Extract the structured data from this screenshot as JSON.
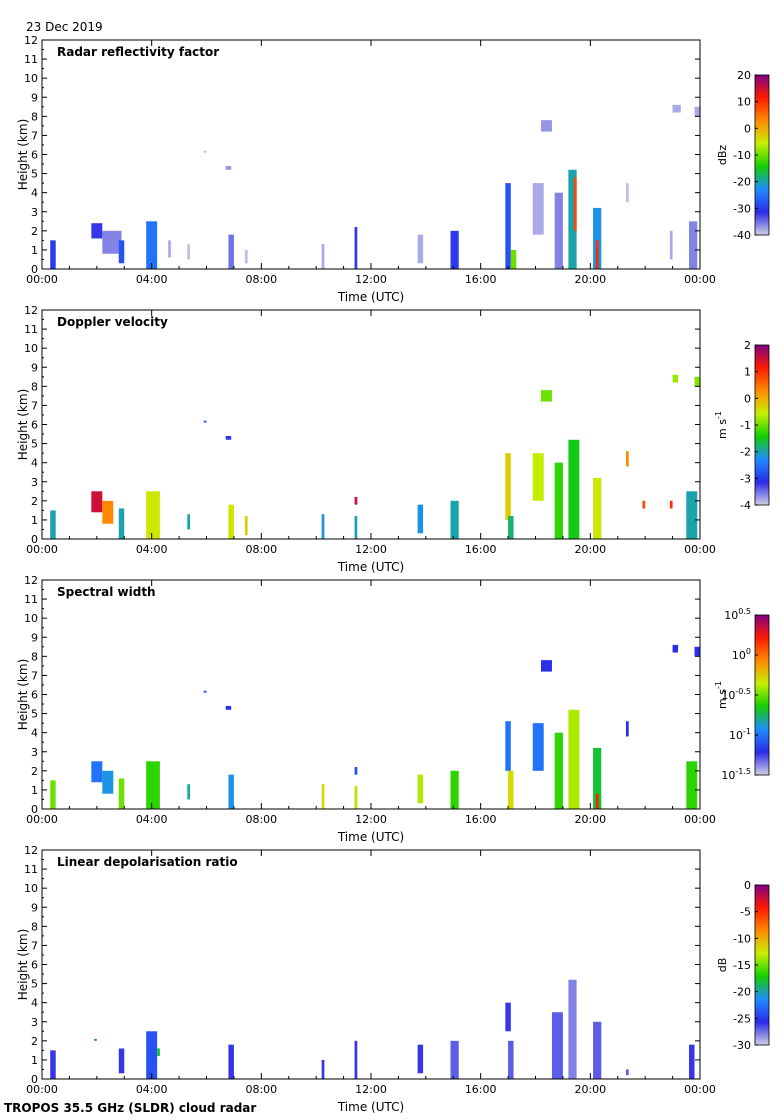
{
  "header": {
    "date": "23 Dec 2019"
  },
  "footer": {
    "caption": "TROPOS 35.5 GHz (SLDR) cloud radar"
  },
  "chart_data": [
    {
      "type": "heatmap",
      "title": "Radar reflectivity factor",
      "xlabel": "Time (UTC)",
      "ylabel": "Height (km)",
      "xticks": [
        "00:00",
        "04:00",
        "08:00",
        "12:00",
        "16:00",
        "20:00",
        "00:00"
      ],
      "xlim_hours": [
        0,
        24
      ],
      "ylim": [
        0,
        12
      ],
      "yticks": [
        0,
        1,
        2,
        3,
        4,
        5,
        6,
        7,
        8,
        9,
        10,
        11,
        12
      ],
      "colorbar": {
        "label": "dBz",
        "min": -40,
        "max": 20,
        "ticks": [
          {
            "v": 20,
            "t": "20"
          },
          {
            "v": 10,
            "t": "10"
          },
          {
            "v": 0,
            "t": "0"
          },
          {
            "v": -10,
            "t": "-10"
          },
          {
            "v": -20,
            "t": "-20"
          },
          {
            "v": -30,
            "t": "-30"
          },
          {
            "v": -40,
            "t": "-40"
          }
        ],
        "colors": [
          "#d0d0e6",
          "#2b2be8",
          "#1e8cff",
          "#12d000",
          "#c8ef00",
          "#ff8a00",
          "#ff1a00",
          "#820082"
        ]
      },
      "echoes": [
        {
          "t0": 0.3,
          "t1": 0.5,
          "h0": 0.0,
          "h1": 1.5,
          "v": -30
        },
        {
          "t0": 1.8,
          "t1": 2.2,
          "h0": 1.6,
          "h1": 2.4,
          "v": -32
        },
        {
          "t0": 2.2,
          "t1": 2.9,
          "h0": 0.8,
          "h1": 2.0,
          "v": -36
        },
        {
          "t0": 2.8,
          "t1": 3.0,
          "h0": 0.3,
          "h1": 1.5,
          "v": -28
        },
        {
          "t0": 3.8,
          "t1": 4.2,
          "h0": 0.0,
          "h1": 2.5,
          "v": -25
        },
        {
          "t0": 4.6,
          "t1": 4.7,
          "h0": 0.6,
          "h1": 1.5,
          "v": -38
        },
        {
          "t0": 5.3,
          "t1": 5.4,
          "h0": 0.5,
          "h1": 1.3,
          "v": -39
        },
        {
          "t0": 5.9,
          "t1": 6.0,
          "h0": 6.1,
          "h1": 6.2,
          "v": -39
        },
        {
          "t0": 6.7,
          "t1": 6.9,
          "h0": 5.2,
          "h1": 5.4,
          "v": -37
        },
        {
          "t0": 6.8,
          "t1": 7.0,
          "h0": 0.0,
          "h1": 1.8,
          "v": -35
        },
        {
          "t0": 7.4,
          "t1": 7.5,
          "h0": 0.3,
          "h1": 1.0,
          "v": -39
        },
        {
          "t0": 10.2,
          "t1": 10.3,
          "h0": 0.0,
          "h1": 1.3,
          "v": -38
        },
        {
          "t0": 11.4,
          "t1": 11.5,
          "h0": 0.0,
          "h1": 2.2,
          "v": -32
        },
        {
          "t0": 13.7,
          "t1": 13.9,
          "h0": 0.3,
          "h1": 1.8,
          "v": -38
        },
        {
          "t0": 14.9,
          "t1": 15.2,
          "h0": 0.0,
          "h1": 2.0,
          "v": -30
        },
        {
          "t0": 16.9,
          "t1": 17.1,
          "h0": 0.0,
          "h1": 4.5,
          "v": -28
        },
        {
          "t0": 17.1,
          "t1": 17.3,
          "h0": 0.0,
          "h1": 1.0,
          "v": -10
        },
        {
          "t0": 17.9,
          "t1": 18.3,
          "h0": 1.8,
          "h1": 4.5,
          "v": -38
        },
        {
          "t0": 18.2,
          "t1": 18.6,
          "h0": 7.2,
          "h1": 7.8,
          "v": -37
        },
        {
          "t0": 18.7,
          "t1": 19.0,
          "h0": 0.0,
          "h1": 4.0,
          "v": -36
        },
        {
          "t0": 19.2,
          "t1": 19.5,
          "h0": 0.0,
          "h1": 5.2,
          "v": -20
        },
        {
          "t0": 19.4,
          "t1": 19.5,
          "h0": 2.0,
          "h1": 4.8,
          "v": 8
        },
        {
          "t0": 20.1,
          "t1": 20.4,
          "h0": 0.0,
          "h1": 3.2,
          "v": -22
        },
        {
          "t0": 20.2,
          "t1": 20.3,
          "h0": 0.0,
          "h1": 1.5,
          "v": 10
        },
        {
          "t0": 21.3,
          "t1": 21.4,
          "h0": 3.5,
          "h1": 4.5,
          "v": -39
        },
        {
          "t0": 22.9,
          "t1": 23.0,
          "h0": 0.5,
          "h1": 2.0,
          "v": -38
        },
        {
          "t0": 23.0,
          "t1": 23.3,
          "h0": 8.2,
          "h1": 8.6,
          "v": -38
        },
        {
          "t0": 23.6,
          "t1": 23.9,
          "h0": 0.0,
          "h1": 2.5,
          "v": -36
        },
        {
          "t0": 23.8,
          "t1": 24.0,
          "h0": 8.0,
          "h1": 8.5,
          "v": -38
        }
      ]
    },
    {
      "type": "heatmap",
      "title": "Doppler velocity",
      "xlabel": "Time (UTC)",
      "ylabel": "Height (km)",
      "xticks": [
        "00:00",
        "04:00",
        "08:00",
        "12:00",
        "16:00",
        "20:00",
        "00:00"
      ],
      "xlim_hours": [
        0,
        24
      ],
      "ylim": [
        0,
        12
      ],
      "yticks": [
        0,
        1,
        2,
        3,
        4,
        5,
        6,
        7,
        8,
        9,
        10,
        11,
        12
      ],
      "colorbar": {
        "label": "m s-1",
        "min": -4,
        "max": 2,
        "ticks": [
          {
            "v": 2,
            "t": "2"
          },
          {
            "v": 1,
            "t": "1"
          },
          {
            "v": 0,
            "t": "0"
          },
          {
            "v": -1,
            "t": "-1"
          },
          {
            "v": -2,
            "t": "-2"
          },
          {
            "v": -3,
            "t": "-3"
          },
          {
            "v": -4,
            "t": "-4"
          }
        ],
        "colors": [
          "#d0d0e6",
          "#2b2be8",
          "#1e8cff",
          "#12d000",
          "#c8ef00",
          "#ff8a00",
          "#ff1a00",
          "#820082"
        ]
      },
      "echoes": [
        {
          "t0": 0.3,
          "t1": 0.5,
          "h0": 0.0,
          "h1": 1.5,
          "v": -2.0
        },
        {
          "t0": 1.8,
          "t1": 2.2,
          "h0": 1.4,
          "h1": 2.5,
          "v": 1.5
        },
        {
          "t0": 2.2,
          "t1": 2.6,
          "h0": 0.8,
          "h1": 2.0,
          "v": 0.3
        },
        {
          "t0": 2.8,
          "t1": 3.0,
          "h0": 0.0,
          "h1": 1.6,
          "v": -2.0
        },
        {
          "t0": 3.8,
          "t1": 4.3,
          "h0": 0.0,
          "h1": 2.5,
          "v": -0.5
        },
        {
          "t0": 5.3,
          "t1": 5.4,
          "h0": 0.5,
          "h1": 1.3,
          "v": -2.0
        },
        {
          "t0": 5.9,
          "t1": 6.0,
          "h0": 6.1,
          "h1": 6.2,
          "v": -2.8
        },
        {
          "t0": 6.7,
          "t1": 6.9,
          "h0": 5.2,
          "h1": 5.4,
          "v": -3.0
        },
        {
          "t0": 6.8,
          "t1": 7.0,
          "h0": 0.0,
          "h1": 1.8,
          "v": -0.5
        },
        {
          "t0": 7.4,
          "t1": 7.5,
          "h0": 0.2,
          "h1": 1.2,
          "v": -0.3
        },
        {
          "t0": 10.2,
          "t1": 10.3,
          "h0": 0.0,
          "h1": 1.3,
          "v": -2.2
        },
        {
          "t0": 11.4,
          "t1": 11.5,
          "h0": 0.0,
          "h1": 1.2,
          "v": -2.0
        },
        {
          "t0": 11.4,
          "t1": 11.5,
          "h0": 1.8,
          "h1": 2.2,
          "v": 1.5
        },
        {
          "t0": 13.7,
          "t1": 13.9,
          "h0": 0.3,
          "h1": 1.8,
          "v": -2.2
        },
        {
          "t0": 14.9,
          "t1": 15.2,
          "h0": 0.0,
          "h1": 2.0,
          "v": -2.0
        },
        {
          "t0": 16.9,
          "t1": 17.1,
          "h0": 1.0,
          "h1": 4.5,
          "v": -0.3
        },
        {
          "t0": 17.0,
          "t1": 17.2,
          "h0": 0.0,
          "h1": 1.2,
          "v": -1.8
        },
        {
          "t0": 17.9,
          "t1": 18.3,
          "h0": 2.0,
          "h1": 4.5,
          "v": -0.6
        },
        {
          "t0": 18.2,
          "t1": 18.6,
          "h0": 7.2,
          "h1": 7.8,
          "v": -1.0
        },
        {
          "t0": 18.7,
          "t1": 19.0,
          "h0": 0.0,
          "h1": 4.0,
          "v": -1.3
        },
        {
          "t0": 19.2,
          "t1": 19.6,
          "h0": 0.0,
          "h1": 5.2,
          "v": -1.5
        },
        {
          "t0": 20.1,
          "t1": 20.4,
          "h0": 0.0,
          "h1": 3.2,
          "v": -0.5
        },
        {
          "t0": 21.3,
          "t1": 21.4,
          "h0": 3.8,
          "h1": 4.6,
          "v": 0.3
        },
        {
          "t0": 21.9,
          "t1": 22.0,
          "h0": 1.6,
          "h1": 2.0,
          "v": 0.8
        },
        {
          "t0": 22.9,
          "t1": 23.0,
          "h0": 1.6,
          "h1": 2.0,
          "v": 1.0
        },
        {
          "t0": 23.0,
          "t1": 23.2,
          "h0": 8.2,
          "h1": 8.6,
          "v": -0.8
        },
        {
          "t0": 23.5,
          "t1": 23.9,
          "h0": 0.0,
          "h1": 2.5,
          "v": -2.0
        },
        {
          "t0": 23.8,
          "t1": 24.0,
          "h0": 8.0,
          "h1": 8.5,
          "v": -0.9
        }
      ]
    },
    {
      "type": "heatmap",
      "title": "Spectral width",
      "xlabel": "Time (UTC)",
      "ylabel": "Height (km)",
      "xticks": [
        "00:00",
        "04:00",
        "08:00",
        "12:00",
        "16:00",
        "20:00",
        "00:00"
      ],
      "xlim_hours": [
        0,
        24
      ],
      "ylim": [
        0,
        12
      ],
      "yticks": [
        0,
        1,
        2,
        3,
        4,
        5,
        6,
        7,
        8,
        9,
        10,
        11,
        12
      ],
      "colorbar": {
        "label": "m s-1",
        "min": -1.5,
        "max": 0.5,
        "log10": true,
        "ticks": [
          {
            "v": 0.5,
            "t": "10^0.5"
          },
          {
            "v": 0,
            "t": "10^0"
          },
          {
            "v": -0.5,
            "t": "10^-0.5"
          },
          {
            "v": -1,
            "t": "10^-1"
          },
          {
            "v": -1.5,
            "t": "10^-1.5"
          }
        ],
        "colors": [
          "#d0d0e6",
          "#2b2be8",
          "#1e8cff",
          "#12d000",
          "#c8ef00",
          "#ff8a00",
          "#ff1a00",
          "#820082"
        ]
      },
      "echoes": [
        {
          "t0": 0.3,
          "t1": 0.5,
          "h0": 0.0,
          "h1": 1.5,
          "v": -0.5
        },
        {
          "t0": 1.8,
          "t1": 2.2,
          "h0": 1.4,
          "h1": 2.5,
          "v": -1.0
        },
        {
          "t0": 2.2,
          "t1": 2.6,
          "h0": 0.8,
          "h1": 2.0,
          "v": -0.9
        },
        {
          "t0": 2.8,
          "t1": 3.0,
          "h0": 0.0,
          "h1": 1.6,
          "v": -0.5
        },
        {
          "t0": 3.8,
          "t1": 4.3,
          "h0": 0.0,
          "h1": 2.5,
          "v": -0.6
        },
        {
          "t0": 5.3,
          "t1": 5.4,
          "h0": 0.5,
          "h1": 1.3,
          "v": -0.8
        },
        {
          "t0": 5.9,
          "t1": 6.0,
          "h0": 6.1,
          "h1": 6.2,
          "v": -1.1
        },
        {
          "t0": 6.7,
          "t1": 6.9,
          "h0": 5.2,
          "h1": 5.4,
          "v": -1.2
        },
        {
          "t0": 6.8,
          "t1": 7.0,
          "h0": 0.0,
          "h1": 1.8,
          "v": -0.9
        },
        {
          "t0": 10.2,
          "t1": 10.3,
          "h0": 0.0,
          "h1": 1.3,
          "v": -0.3
        },
        {
          "t0": 11.4,
          "t1": 11.5,
          "h0": 0.0,
          "h1": 1.2,
          "v": -0.4
        },
        {
          "t0": 11.4,
          "t1": 11.5,
          "h0": 1.8,
          "h1": 2.2,
          "v": -1.1
        },
        {
          "t0": 13.7,
          "t1": 13.9,
          "h0": 0.3,
          "h1": 1.8,
          "v": -0.4
        },
        {
          "t0": 14.9,
          "t1": 15.2,
          "h0": 0.0,
          "h1": 2.0,
          "v": -0.6
        },
        {
          "t0": 16.9,
          "t1": 17.1,
          "h0": 2.0,
          "h1": 4.6,
          "v": -1.0
        },
        {
          "t0": 17.0,
          "t1": 17.2,
          "h0": 0.0,
          "h1": 2.0,
          "v": -0.3
        },
        {
          "t0": 17.9,
          "t1": 18.3,
          "h0": 2.0,
          "h1": 4.5,
          "v": -1.0
        },
        {
          "t0": 18.2,
          "t1": 18.6,
          "h0": 7.2,
          "h1": 7.8,
          "v": -1.2
        },
        {
          "t0": 18.7,
          "t1": 19.0,
          "h0": 0.0,
          "h1": 4.0,
          "v": -0.6
        },
        {
          "t0": 19.2,
          "t1": 19.6,
          "h0": 0.0,
          "h1": 5.2,
          "v": -0.4
        },
        {
          "t0": 20.1,
          "t1": 20.4,
          "h0": 0.0,
          "h1": 3.2,
          "v": -0.7
        },
        {
          "t0": 20.2,
          "t1": 20.3,
          "h0": 0.0,
          "h1": 0.8,
          "v": 0.2
        },
        {
          "t0": 21.3,
          "t1": 21.4,
          "h0": 3.8,
          "h1": 4.6,
          "v": -1.2
        },
        {
          "t0": 23.0,
          "t1": 23.2,
          "h0": 8.2,
          "h1": 8.6,
          "v": -1.2
        },
        {
          "t0": 23.5,
          "t1": 23.9,
          "h0": 0.0,
          "h1": 2.5,
          "v": -0.6
        },
        {
          "t0": 23.8,
          "t1": 24.0,
          "h0": 8.0,
          "h1": 8.5,
          "v": -1.2
        }
      ]
    },
    {
      "type": "heatmap",
      "title": "Linear depolarisation ratio",
      "xlabel": "Time (UTC)",
      "ylabel": "Height (km)",
      "xticks": [
        "00:00",
        "04:00",
        "08:00",
        "12:00",
        "16:00",
        "20:00",
        "00:00"
      ],
      "xlim_hours": [
        0,
        24
      ],
      "ylim": [
        0,
        12
      ],
      "yticks": [
        0,
        1,
        2,
        3,
        4,
        5,
        6,
        7,
        8,
        9,
        10,
        11,
        12
      ],
      "colorbar": {
        "label": "dB",
        "min": -30,
        "max": 0,
        "ticks": [
          {
            "v": 0,
            "t": "0"
          },
          {
            "v": -5,
            "t": "-5"
          },
          {
            "v": -10,
            "t": "-10"
          },
          {
            "v": -15,
            "t": "-15"
          },
          {
            "v": -20,
            "t": "-20"
          },
          {
            "v": -25,
            "t": "-25"
          },
          {
            "v": -30,
            "t": "-30"
          }
        ],
        "colors": [
          "#d0d0e6",
          "#2b2be8",
          "#1e8cff",
          "#12d000",
          "#c8ef00",
          "#ff8a00",
          "#ff1a00",
          "#820082"
        ]
      },
      "echoes": [
        {
          "t0": 0.3,
          "t1": 0.5,
          "h0": 0.0,
          "h1": 1.5,
          "v": -26
        },
        {
          "t0": 1.9,
          "t1": 2.0,
          "h0": 2.0,
          "h1": 2.1,
          "v": -22
        },
        {
          "t0": 2.8,
          "t1": 3.0,
          "h0": 0.3,
          "h1": 1.6,
          "v": -26
        },
        {
          "t0": 3.8,
          "t1": 4.2,
          "h0": 0.0,
          "h1": 2.5,
          "v": -24
        },
        {
          "t0": 4.2,
          "t1": 4.3,
          "h0": 1.2,
          "h1": 1.6,
          "v": -18
        },
        {
          "t0": 6.8,
          "t1": 7.0,
          "h0": 0.0,
          "h1": 1.8,
          "v": -26
        },
        {
          "t0": 10.2,
          "t1": 10.3,
          "h0": 0.0,
          "h1": 1.0,
          "v": -26
        },
        {
          "t0": 11.4,
          "t1": 11.5,
          "h0": 0.0,
          "h1": 2.0,
          "v": -26
        },
        {
          "t0": 13.7,
          "t1": 13.9,
          "h0": 0.3,
          "h1": 1.8,
          "v": -26
        },
        {
          "t0": 14.9,
          "t1": 15.2,
          "h0": 0.0,
          "h1": 2.0,
          "v": -27
        },
        {
          "t0": 16.9,
          "t1": 17.1,
          "h0": 2.5,
          "h1": 4.0,
          "v": -26
        },
        {
          "t0": 17.0,
          "t1": 17.2,
          "h0": 0.0,
          "h1": 2.0,
          "v": -27
        },
        {
          "t0": 18.6,
          "t1": 19.0,
          "h0": 0.0,
          "h1": 3.5,
          "v": -27
        },
        {
          "t0": 19.2,
          "t1": 19.5,
          "h0": 0.0,
          "h1": 5.2,
          "v": -28
        },
        {
          "t0": 20.1,
          "t1": 20.4,
          "h0": 0.0,
          "h1": 3.0,
          "v": -27
        },
        {
          "t0": 21.3,
          "t1": 21.4,
          "h0": 0.2,
          "h1": 0.5,
          "v": -27
        },
        {
          "t0": 23.6,
          "t1": 23.8,
          "h0": 0.0,
          "h1": 1.8,
          "v": -26
        }
      ]
    }
  ]
}
